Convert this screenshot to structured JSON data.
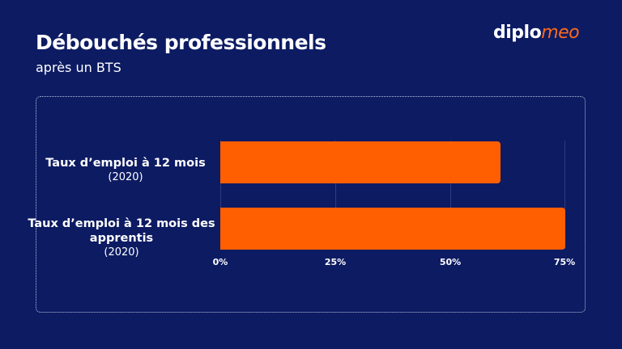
{
  "header": {
    "title": "Débouchés professionnels",
    "subtitle": "après un BTS",
    "logo": {
      "part1": "diplo",
      "part2": "meo"
    }
  },
  "colors": {
    "background": "#0d1b63",
    "bar": "#ff5f00",
    "accent": "#ff6a1a",
    "text": "#ffffff"
  },
  "chart_data": {
    "type": "bar",
    "orientation": "horizontal",
    "title": "Débouchés professionnels",
    "subtitle": "après un BTS",
    "categories": [
      "Taux d’emploi à 12 mois (2020)",
      "Taux d’emploi à 12 mois des apprentis (2020)"
    ],
    "values": [
      61,
      75
    ],
    "unit": "%",
    "xlim": [
      0,
      75
    ],
    "xticks": [
      "0%",
      "25%",
      "50%",
      "75%"
    ],
    "grid": true,
    "xlabel": "",
    "ylabel": ""
  },
  "categories": [
    {
      "label": "Taux d’emploi à 12 mois",
      "year": "(2020)"
    },
    {
      "label": "Taux d’emploi à 12 mois des apprentis",
      "year": "(2020)"
    }
  ],
  "ticks": [
    "0%",
    "25%",
    "50%",
    "75%"
  ]
}
